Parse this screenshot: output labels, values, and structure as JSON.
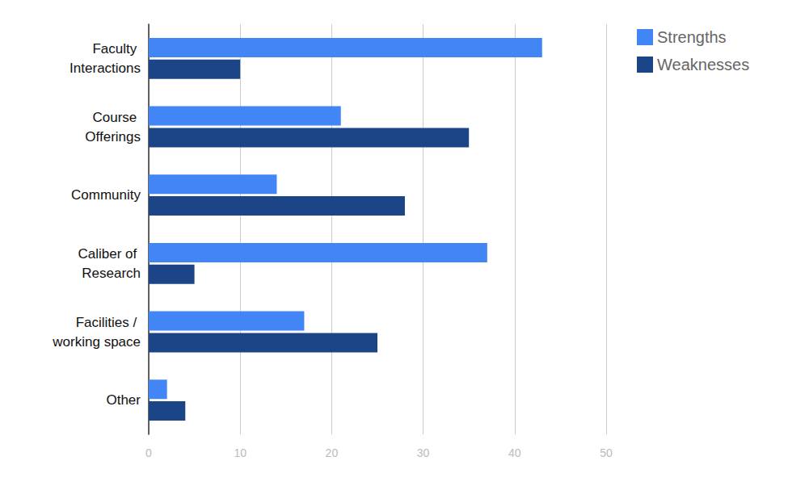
{
  "chart_data": {
    "type": "bar",
    "orientation": "horizontal",
    "categories": [
      "Faculty Interactions",
      "Course Offerings",
      "Community",
      "Caliber of Research",
      "Facilities / working space",
      "Other"
    ],
    "series": [
      {
        "name": "Strengths",
        "color": "#4285f4",
        "values": [
          43,
          21,
          14,
          37,
          17,
          2
        ]
      },
      {
        "name": "Weaknesses",
        "color": "#1c4587",
        "values": [
          10,
          35,
          28,
          5,
          25,
          4
        ]
      }
    ],
    "xlim": [
      0,
      50
    ],
    "xticks": [
      0,
      10,
      20,
      30,
      40,
      50
    ],
    "grid": true,
    "legend": "top-right"
  }
}
